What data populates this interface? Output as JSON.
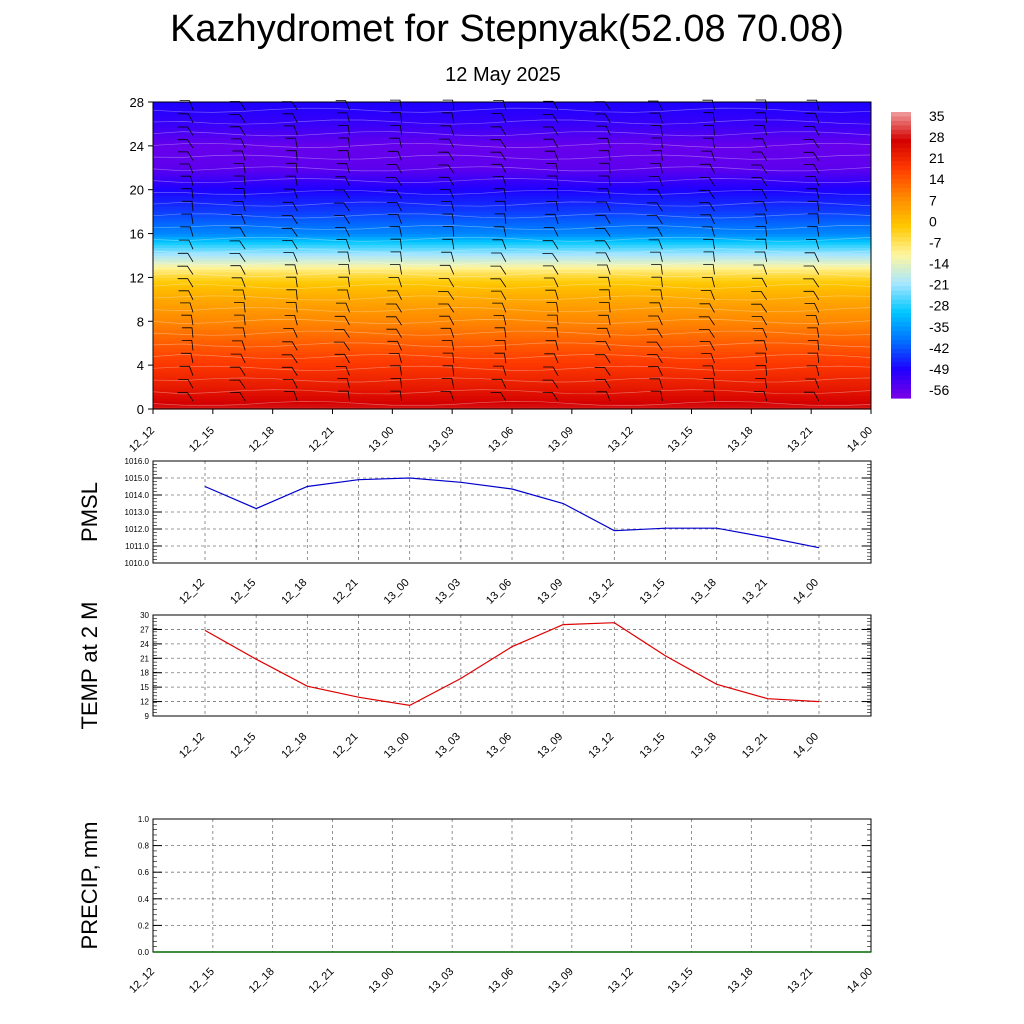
{
  "header": {
    "title": "Kazhydromet for Stepnyak(52.08 70.08)",
    "date": "12 May 2025"
  },
  "time_labels": [
    "12_12",
    "12_15",
    "12_18",
    "12_21",
    "13_00",
    "13_03",
    "13_06",
    "13_09",
    "13_12",
    "13_15",
    "13_18",
    "13_21",
    "14_00"
  ],
  "chart_data": [
    {
      "type": "heatmap",
      "y_ticks": [
        0,
        4,
        8,
        12,
        16,
        20,
        24,
        28
      ],
      "ylim": [
        0,
        28
      ],
      "x": [
        "12_12",
        "12_15",
        "12_18",
        "12_21",
        "13_00",
        "13_03",
        "13_06",
        "13_09",
        "13_12",
        "13_15",
        "13_18",
        "13_21",
        "14_00"
      ],
      "temperature_profile": [
        {
          "level": 0,
          "value": 30
        },
        {
          "level": 2,
          "value": 24
        },
        {
          "level": 5,
          "value": 17
        },
        {
          "level": 8,
          "value": 9
        },
        {
          "level": 10,
          "value": 4
        },
        {
          "level": 11.5,
          "value": -1
        },
        {
          "level": 12.5,
          "value": -7
        },
        {
          "level": 13.5,
          "value": -16
        },
        {
          "level": 15,
          "value": -28
        },
        {
          "level": 16,
          "value": -38
        },
        {
          "level": 18,
          "value": -45
        },
        {
          "level": 20,
          "value": -50
        },
        {
          "level": 22,
          "value": -57
        },
        {
          "level": 24,
          "value": -58
        },
        {
          "level": 26,
          "value": -53
        },
        {
          "level": 28,
          "value": -50
        }
      ],
      "colorbar": {
        "labels": [
          "35",
          "28",
          "21",
          "14",
          "7",
          "0",
          "-7",
          "-14",
          "-21",
          "-28",
          "-35",
          "-42",
          "-49",
          "-56"
        ],
        "min": -60,
        "max": 38,
        "colors": [
          "#7a00e6",
          "#1e00ff",
          "#0072ff",
          "#00c8ff",
          "#a8e6ff",
          "#fff6a0",
          "#ffc800",
          "#ff8a00",
          "#ff3c00",
          "#d40000",
          "#f0a0a0"
        ]
      },
      "wind_barbs": true,
      "colors": {
        "high": "#cc0000",
        "mid_warm": "#ffcc00",
        "mid_cold": "#88ddff",
        "low": "#6a00ff"
      }
    },
    {
      "type": "line",
      "ylabel": "PMSL",
      "ylim": [
        1010.0,
        1016.0
      ],
      "y_ticks": [
        "1010.0",
        "1011.0",
        "1012.0",
        "1013.0",
        "1014.0",
        "1015.0",
        "1016.0"
      ],
      "categories": [
        "12_12",
        "12_15",
        "12_18",
        "12_21",
        "13_00",
        "13_03",
        "13_06",
        "13_09",
        "13_12",
        "13_15",
        "13_18",
        "13_21",
        "14_00"
      ],
      "values": [
        1014.5,
        1013.2,
        1014.5,
        1014.9,
        1015.0,
        1014.75,
        1014.35,
        1013.5,
        1011.9,
        1012.05,
        1012.05,
        1011.5,
        1010.9
      ],
      "grid": true,
      "line_color": "#0000cc"
    },
    {
      "type": "line",
      "ylabel": "TEMP at 2 M",
      "ylim": [
        9,
        30
      ],
      "y_ticks": [
        "9",
        "12",
        "15",
        "18",
        "21",
        "24",
        "27",
        "30"
      ],
      "categories": [
        "12_12",
        "12_15",
        "12_18",
        "12_21",
        "13_00",
        "13_03",
        "13_06",
        "13_09",
        "13_12",
        "13_15",
        "13_18",
        "13_21",
        "14_00"
      ],
      "values": [
        26.8,
        20.8,
        15.2,
        12.9,
        11.2,
        16.8,
        23.4,
        28.0,
        28.4,
        21.5,
        15.6,
        12.6,
        12.0
      ],
      "grid": true,
      "line_color": "#dd0000"
    },
    {
      "type": "line",
      "ylabel": "PRECIP, mm",
      "ylim": [
        0.0,
        1.0
      ],
      "y_ticks": [
        "0.0",
        "0.2",
        "0.4",
        "0.6",
        "0.8",
        "1.0"
      ],
      "categories": [
        "12_12",
        "12_15",
        "12_18",
        "12_21",
        "13_00",
        "13_03",
        "13_06",
        "13_09",
        "13_12",
        "13_15",
        "13_18",
        "13_21",
        "14_00"
      ],
      "values": [
        0,
        0,
        0,
        0,
        0,
        0,
        0,
        0,
        0,
        0,
        0,
        0,
        0
      ],
      "grid": true,
      "line_color": "#006600"
    }
  ]
}
